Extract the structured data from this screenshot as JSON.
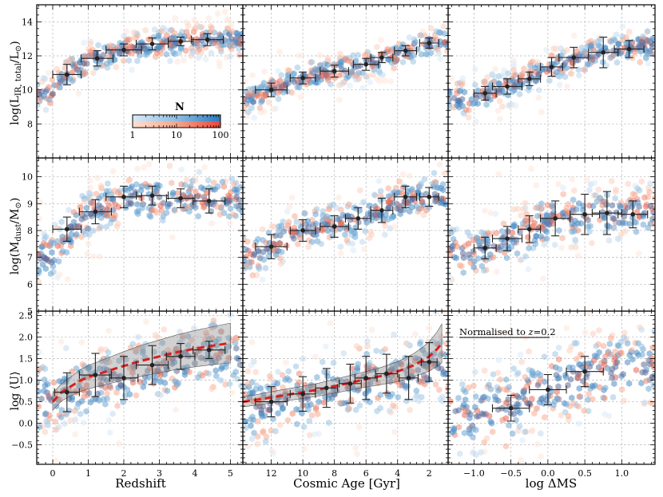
{
  "figure": {
    "colorbar": {
      "title": "N",
      "tick_labels": [
        "1",
        "10",
        "100"
      ],
      "colors": {
        "blue_low": "#dbe9f6",
        "blue_high": "#2b7bc0",
        "red_low": "#fde0d2",
        "red_high": "#e8473b"
      }
    },
    "colors": {
      "fit_line": "#d62020",
      "band": "#9a9a9a",
      "points": "#222222",
      "grid": "#b4b4b4"
    },
    "annotation": "Normalised to z=0.2",
    "row_labels": [
      "log(L_IR, total/L_⊙)",
      "log(M_dust/M_⊙)",
      "log ⟨U⟩"
    ],
    "col_labels": [
      "Redshift",
      "Cosmic Age [Gyr]",
      "log ΔMS"
    ]
  },
  "chart_data": [
    {
      "type": "scatter",
      "row": 0,
      "col": 0,
      "xlabel": "",
      "ylabel": "log(L_IR, total/L_⊙)",
      "xlim": [
        -0.45,
        5.35
      ],
      "ylim": [
        6,
        15
      ],
      "xticks": [
        0,
        1,
        2,
        3,
        4,
        5
      ],
      "xticklabels": [],
      "yticks": [
        8,
        10,
        12,
        14
      ],
      "yticklabels": [
        "8",
        "10",
        "12",
        "14"
      ],
      "points": [
        {
          "x": 0.4,
          "y": 10.9,
          "xerr": 0.4,
          "yerr": 0.6
        },
        {
          "x": 1.25,
          "y": 11.85,
          "xerr": 0.45,
          "yerr": 0.45
        },
        {
          "x": 2.0,
          "y": 12.35,
          "xerr": 0.5,
          "yerr": 0.35
        },
        {
          "x": 2.8,
          "y": 12.7,
          "xerr": 0.45,
          "yerr": 0.35
        },
        {
          "x": 3.6,
          "y": 12.85,
          "xerr": 0.35,
          "yerr": 0.25
        },
        {
          "x": 4.35,
          "y": 12.95,
          "xerr": 0.45,
          "yerr": 0.35
        }
      ],
      "trend": [
        [
          0,
          9.8
        ],
        [
          0.2,
          10.4
        ],
        [
          0.5,
          11.1
        ],
        [
          1,
          11.7
        ],
        [
          2,
          12.35
        ],
        [
          3,
          12.7
        ],
        [
          4.2,
          12.95
        ]
      ],
      "spread": 0.55
    },
    {
      "type": "scatter",
      "row": 0,
      "col": 1,
      "xlabel": "",
      "ylabel": "",
      "xlim": [
        13.8,
        0.8
      ],
      "ylim": [
        6,
        15
      ],
      "xticks": [
        12,
        10,
        8,
        6,
        4,
        2
      ],
      "xticklabels": [],
      "yticks": [
        8,
        10,
        12,
        14
      ],
      "yticklabels": [],
      "points": [
        {
          "x": 12.0,
          "y": 10.0,
          "xerr": 1.0,
          "yerr": 0.4
        },
        {
          "x": 10.0,
          "y": 10.7,
          "xerr": 0.8,
          "yerr": 0.35
        },
        {
          "x": 8.0,
          "y": 11.1,
          "xerr": 0.9,
          "yerr": 0.35
        },
        {
          "x": 6.0,
          "y": 11.5,
          "xerr": 0.8,
          "yerr": 0.35
        },
        {
          "x": 5.0,
          "y": 11.9,
          "xerr": 0.7,
          "yerr": 0.3
        },
        {
          "x": 3.5,
          "y": 12.3,
          "xerr": 0.7,
          "yerr": 0.3
        },
        {
          "x": 2.0,
          "y": 12.75,
          "xerr": 0.6,
          "yerr": 0.3
        }
      ],
      "trend": [
        [
          13,
          9.5
        ],
        [
          12,
          10.0
        ],
        [
          10,
          10.7
        ],
        [
          8,
          11.1
        ],
        [
          6,
          11.5
        ],
        [
          4,
          12.1
        ],
        [
          2,
          12.75
        ],
        [
          1.5,
          12.9
        ]
      ],
      "spread": 0.5
    },
    {
      "type": "scatter",
      "row": 0,
      "col": 2,
      "xlabel": "",
      "ylabel": "",
      "xlim": [
        -1.35,
        1.45
      ],
      "ylim": [
        6,
        15
      ],
      "xticks": [
        -1,
        -0.5,
        0,
        0.5,
        1
      ],
      "xticklabels": [],
      "yticks": [
        8,
        10,
        12,
        14
      ],
      "yticklabels": [],
      "points": [
        {
          "x": -0.85,
          "y": 9.8,
          "xerr": 0.15,
          "yerr": 0.4
        },
        {
          "x": -0.55,
          "y": 10.2,
          "xerr": 0.2,
          "yerr": 0.45
        },
        {
          "x": -0.25,
          "y": 10.65,
          "xerr": 0.15,
          "yerr": 0.4
        },
        {
          "x": 0.05,
          "y": 11.35,
          "xerr": 0.15,
          "yerr": 0.55
        },
        {
          "x": 0.35,
          "y": 11.9,
          "xerr": 0.2,
          "yerr": 0.6
        },
        {
          "x": 0.75,
          "y": 12.2,
          "xerr": 0.2,
          "yerr": 0.9
        },
        {
          "x": 1.1,
          "y": 12.4,
          "xerr": 0.2,
          "yerr": 0.5
        }
      ],
      "trend": [
        [
          -1.0,
          9.5
        ],
        [
          -0.5,
          10.2
        ],
        [
          0,
          11.2
        ],
        [
          0.5,
          12.0
        ],
        [
          1.0,
          12.4
        ],
        [
          1.3,
          12.6
        ]
      ],
      "spread": 0.6
    },
    {
      "type": "scatter",
      "row": 1,
      "col": 0,
      "xlabel": "",
      "ylabel": "log(M_dust/M_⊙)",
      "xlim": [
        -0.45,
        5.35
      ],
      "ylim": [
        5,
        10.7
      ],
      "xticks": [
        0,
        1,
        2,
        3,
        4,
        5
      ],
      "xticklabels": [],
      "yticks": [
        5,
        6,
        7,
        8,
        9,
        10
      ],
      "yticklabels": [
        "5",
        "6",
        "7",
        "8",
        "9",
        "10"
      ],
      "points": [
        {
          "x": 0.4,
          "y": 8.05,
          "xerr": 0.4,
          "yerr": 0.45
        },
        {
          "x": 1.2,
          "y": 8.7,
          "xerr": 0.45,
          "yerr": 0.45
        },
        {
          "x": 2.0,
          "y": 9.25,
          "xerr": 0.5,
          "yerr": 0.4
        },
        {
          "x": 2.8,
          "y": 9.3,
          "xerr": 0.45,
          "yerr": 0.35
        },
        {
          "x": 3.6,
          "y": 9.2,
          "xerr": 0.4,
          "yerr": 0.35
        },
        {
          "x": 4.4,
          "y": 9.1,
          "xerr": 0.45,
          "yerr": 0.45
        }
      ],
      "trend": [
        [
          0,
          7.0
        ],
        [
          0.3,
          7.7
        ],
        [
          0.8,
          8.4
        ],
        [
          1.5,
          8.9
        ],
        [
          2.5,
          9.2
        ],
        [
          4.3,
          9.2
        ]
      ],
      "spread": 0.55
    },
    {
      "type": "scatter",
      "row": 1,
      "col": 1,
      "xlabel": "",
      "ylabel": "",
      "xlim": [
        13.8,
        0.8
      ],
      "ylim": [
        5,
        10.7
      ],
      "xticks": [
        12,
        10,
        8,
        6,
        4,
        2
      ],
      "xticklabels": [],
      "yticks": [
        5,
        6,
        7,
        8,
        9,
        10
      ],
      "yticklabels": [],
      "points": [
        {
          "x": 12.0,
          "y": 7.4,
          "xerr": 1.0,
          "yerr": 0.45
        },
        {
          "x": 10.0,
          "y": 8.0,
          "xerr": 0.8,
          "yerr": 0.4
        },
        {
          "x": 8.0,
          "y": 8.15,
          "xerr": 0.9,
          "yerr": 0.4
        },
        {
          "x": 6.5,
          "y": 8.45,
          "xerr": 0.8,
          "yerr": 0.4
        },
        {
          "x": 5.0,
          "y": 8.75,
          "xerr": 0.7,
          "yerr": 0.45
        },
        {
          "x": 3.5,
          "y": 9.25,
          "xerr": 0.7,
          "yerr": 0.4
        },
        {
          "x": 2.0,
          "y": 9.25,
          "xerr": 0.6,
          "yerr": 0.35
        }
      ],
      "trend": [
        [
          13,
          7.1
        ],
        [
          12,
          7.4
        ],
        [
          10,
          8.0
        ],
        [
          8,
          8.2
        ],
        [
          6,
          8.5
        ],
        [
          4,
          9.0
        ],
        [
          2,
          9.25
        ],
        [
          1.5,
          9.3
        ]
      ],
      "spread": 0.5
    },
    {
      "type": "scatter",
      "row": 1,
      "col": 2,
      "xlabel": "",
      "ylabel": "",
      "xlim": [
        -1.35,
        1.45
      ],
      "ylim": [
        5,
        10.7
      ],
      "xticks": [
        -1,
        -0.5,
        0,
        0.5,
        1
      ],
      "xticklabels": [],
      "yticks": [
        5,
        6,
        7,
        8,
        9,
        10
      ],
      "yticklabels": [],
      "points": [
        {
          "x": -0.85,
          "y": 7.35,
          "xerr": 0.15,
          "yerr": 0.4
        },
        {
          "x": -0.55,
          "y": 7.7,
          "xerr": 0.2,
          "yerr": 0.45
        },
        {
          "x": -0.25,
          "y": 8.05,
          "xerr": 0.15,
          "yerr": 0.5
        },
        {
          "x": 0.1,
          "y": 8.45,
          "xerr": 0.2,
          "yerr": 0.65
        },
        {
          "x": 0.5,
          "y": 8.6,
          "xerr": 0.2,
          "yerr": 0.75
        },
        {
          "x": 0.8,
          "y": 8.65,
          "xerr": 0.2,
          "yerr": 0.8
        },
        {
          "x": 1.15,
          "y": 8.6,
          "xerr": 0.2,
          "yerr": 0.5
        }
      ],
      "trend": [
        [
          -1.0,
          7.2
        ],
        [
          -0.5,
          7.7
        ],
        [
          0,
          8.3
        ],
        [
          0.5,
          8.6
        ],
        [
          1.0,
          8.7
        ],
        [
          1.3,
          8.7
        ]
      ],
      "spread": 0.6
    },
    {
      "type": "scatter",
      "row": 2,
      "col": 0,
      "xlabel": "Redshift",
      "ylabel": "log ⟨U⟩",
      "xlim": [
        -0.45,
        5.35
      ],
      "ylim": [
        -0.95,
        2.6
      ],
      "xticks": [
        0,
        1,
        2,
        3,
        4,
        5
      ],
      "xticklabels": [
        "0",
        "1",
        "2",
        "3",
        "4",
        "5"
      ],
      "yticks": [
        -0.5,
        0,
        0.5,
        1,
        1.5,
        2,
        2.5
      ],
      "yticklabels": [
        "−0.5",
        "0.0",
        "0.5",
        "1.0",
        "1.5",
        "2.0",
        "2.5"
      ],
      "points": [
        {
          "x": 0.4,
          "y": 0.72,
          "xerr": 0.35,
          "yerr": 0.45
        },
        {
          "x": 1.2,
          "y": 1.12,
          "xerr": 0.45,
          "yerr": 0.5
        },
        {
          "x": 2.0,
          "y": 1.05,
          "xerr": 0.4,
          "yerr": 0.5
        },
        {
          "x": 2.8,
          "y": 1.35,
          "xerr": 0.45,
          "yerr": 0.45
        },
        {
          "x": 3.6,
          "y": 1.55,
          "xerr": 0.4,
          "yerr": 0.3
        },
        {
          "x": 4.4,
          "y": 1.7,
          "xerr": 0.45,
          "yerr": 0.2
        }
      ],
      "fit": {
        "x": [
          0,
          0.25,
          0.5,
          0.75,
          1,
          1.5,
          2,
          2.5,
          3,
          3.5,
          4,
          4.5,
          5
        ],
        "y": [
          0.5,
          0.72,
          0.85,
          0.98,
          1.07,
          1.2,
          1.33,
          1.45,
          1.55,
          1.65,
          1.73,
          1.8,
          1.86
        ],
        "band": [
          0.2,
          0.2,
          0.22,
          0.25,
          0.27,
          0.3,
          0.33,
          0.36,
          0.38,
          0.4,
          0.42,
          0.44,
          0.46
        ]
      },
      "trend": [
        [
          0,
          0.6
        ],
        [
          1,
          0.9
        ],
        [
          2,
          1.1
        ],
        [
          3,
          1.3
        ],
        [
          4.4,
          1.6
        ]
      ],
      "spread": 0.5
    },
    {
      "type": "scatter",
      "row": 2,
      "col": 1,
      "xlabel": "Cosmic Age [Gyr]",
      "ylabel": "",
      "xlim": [
        13.8,
        0.8
      ],
      "ylim": [
        -0.95,
        2.6
      ],
      "xticks": [
        12,
        10,
        8,
        6,
        4,
        2
      ],
      "xticklabels": [
        "12",
        "10",
        "8",
        "6",
        "4",
        "2"
      ],
      "yticks": [
        -0.5,
        0,
        0.5,
        1,
        1.5,
        2,
        2.5
      ],
      "yticklabels": [],
      "points": [
        {
          "x": 12.0,
          "y": 0.5,
          "xerr": 1.0,
          "yerr": 0.35
        },
        {
          "x": 10.0,
          "y": 0.68,
          "xerr": 0.8,
          "yerr": 0.4
        },
        {
          "x": 8.5,
          "y": 0.82,
          "xerr": 0.7,
          "yerr": 0.45
        },
        {
          "x": 7.0,
          "y": 0.92,
          "xerr": 0.7,
          "yerr": 0.45
        },
        {
          "x": 6.0,
          "y": 1.05,
          "xerr": 0.7,
          "yerr": 0.5
        },
        {
          "x": 4.7,
          "y": 1.15,
          "xerr": 0.7,
          "yerr": 0.45
        },
        {
          "x": 3.3,
          "y": 1.05,
          "xerr": 0.6,
          "yerr": 0.5
        },
        {
          "x": 2.0,
          "y": 1.42,
          "xerr": 0.5,
          "yerr": 0.45
        }
      ],
      "fit": {
        "x": [
          13.8,
          13,
          12,
          11,
          10,
          9,
          8,
          7,
          6,
          5,
          4,
          3,
          2.5,
          2,
          1.5,
          1.2
        ],
        "y": [
          0.5,
          0.54,
          0.6,
          0.66,
          0.72,
          0.78,
          0.86,
          0.94,
          1.02,
          1.1,
          1.2,
          1.34,
          1.44,
          1.55,
          1.72,
          1.85
        ],
        "band": [
          0.12,
          0.12,
          0.13,
          0.14,
          0.14,
          0.15,
          0.16,
          0.17,
          0.18,
          0.2,
          0.23,
          0.27,
          0.3,
          0.34,
          0.4,
          0.45
        ]
      },
      "trend": [
        [
          13,
          0.4
        ],
        [
          10,
          0.6
        ],
        [
          7,
          0.9
        ],
        [
          4,
          1.1
        ],
        [
          2,
          1.3
        ]
      ],
      "spread": 0.5
    },
    {
      "type": "scatter",
      "row": 2,
      "col": 2,
      "xlabel": "log ΔMS",
      "ylabel": "",
      "xlim": [
        -1.35,
        1.45
      ],
      "ylim": [
        -0.95,
        2.6
      ],
      "xticks": [
        -1,
        -0.5,
        0,
        0.5,
        1
      ],
      "xticklabels": [
        "−1.0",
        "−0.5",
        "0.0",
        "0.5",
        "1.0"
      ],
      "yticks": [
        -0.5,
        0,
        0.5,
        1,
        1.5,
        2,
        2.5
      ],
      "yticklabels": [],
      "points": [
        {
          "x": -0.5,
          "y": 0.35,
          "xerr": 0.25,
          "yerr": 0.3
        },
        {
          "x": 0.0,
          "y": 0.78,
          "xerr": 0.25,
          "yerr": 0.35
        },
        {
          "x": 0.5,
          "y": 1.2,
          "xerr": 0.25,
          "yerr": 0.35
        }
      ],
      "trend": [
        [
          -1.0,
          0.2
        ],
        [
          -0.5,
          0.4
        ],
        [
          0,
          0.8
        ],
        [
          0.5,
          1.1
        ],
        [
          1.0,
          1.3
        ]
      ],
      "spread": 0.55
    }
  ]
}
